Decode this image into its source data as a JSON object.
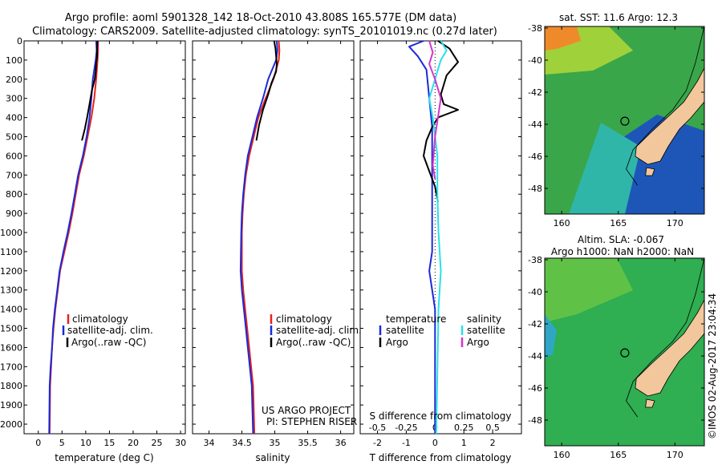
{
  "title_line1": "Argo profile: aoml 5901328_142 18-Oct-2010 43.808S 165.577E (DM data)",
  "title_line2": "Climatology: CARS2009. Satellite-adjusted climatology: synTS_20101019.nc (0.27d later)",
  "credit_line1": "US ARGO PROJECT",
  "credit_line2": "PI: STEPHEN RISER",
  "stamp": "©IMOS 02-Aug-2017 23:04:34",
  "colors": {
    "climatology": "#e8201f",
    "satellite": "#1b2ad8",
    "argo": "#000000",
    "sal_satellite": "#27e1e8",
    "sal_argo": "#d534c9"
  },
  "chart_data": [
    {
      "type": "line",
      "xlabel": "temperature (deg C)",
      "xlim": [
        -3,
        31
      ],
      "ylim": [
        2050,
        0
      ],
      "xticks": [
        "0",
        "5",
        "10",
        "15",
        "20",
        "25",
        "30"
      ],
      "yticks": [
        "0",
        "100",
        "200",
        "300",
        "400",
        "500",
        "600",
        "700",
        "800",
        "900",
        "1000",
        "1100",
        "1200",
        "1300",
        "1400",
        "1500",
        "1600",
        "1700",
        "1800",
        "1900",
        "2000"
      ],
      "legend": [
        "climatology",
        "satellite-adj. clim.",
        "Argo(..raw -QC)"
      ],
      "series": [
        {
          "name": "climatology",
          "color_key": "climatology",
          "x": [
            12.6,
            12.6,
            12.5,
            12.2,
            11.8,
            11.2,
            10.4,
            9.6,
            8.6,
            7.9,
            7.2,
            6.4,
            5.5,
            4.6,
            4.1,
            3.6,
            3.2,
            2.9,
            2.7,
            2.5,
            2.4
          ],
          "y": [
            0,
            50,
            100,
            200,
            300,
            400,
            500,
            600,
            700,
            800,
            900,
            1000,
            1100,
            1200,
            1300,
            1400,
            1500,
            1600,
            1700,
            1800,
            2050
          ]
        },
        {
          "name": "satellite-adj. clim.",
          "color_key": "satellite",
          "x": [
            12.2,
            12.3,
            12.1,
            11.5,
            11.2,
            10.8,
            10.2,
            9.4,
            8.4,
            7.7,
            7.0,
            6.2,
            5.3,
            4.5,
            4.0,
            3.5,
            3.1,
            2.9,
            2.6,
            2.4,
            2.3
          ],
          "y": [
            0,
            50,
            100,
            200,
            300,
            400,
            500,
            600,
            700,
            800,
            900,
            1000,
            1100,
            1200,
            1300,
            1400,
            1500,
            1600,
            1700,
            1800,
            2050
          ]
        },
        {
          "name": "Argo(..raw -QC)",
          "color_key": "argo",
          "x": [
            12.5,
            12.4,
            12.4,
            12.2,
            12.1,
            11.9,
            11.3,
            10.8,
            10.3,
            9.8,
            9.2
          ],
          "y": [
            0,
            40,
            80,
            120,
            160,
            200,
            260,
            330,
            400,
            460,
            520
          ]
        }
      ]
    },
    {
      "type": "line",
      "xlabel": "salinity",
      "xlim": [
        33.75,
        36.2
      ],
      "ylim": [
        2050,
        0
      ],
      "xticks": [
        "34",
        "34.5",
        "35",
        "35.5",
        "36"
      ],
      "legend": [
        "climatology",
        "satellite-adj. clim.",
        "Argo(..raw -QC)"
      ],
      "series": [
        {
          "name": "climatology",
          "color_key": "climatology",
          "x": [
            35.06,
            35.07,
            35.06,
            34.98,
            34.86,
            34.75,
            34.68,
            34.61,
            34.56,
            34.53,
            34.51,
            34.5,
            34.5,
            34.52,
            34.55,
            34.58,
            34.61,
            34.64,
            34.67,
            34.69
          ],
          "y": [
            0,
            50,
            100,
            200,
            300,
            400,
            500,
            600,
            700,
            800,
            900,
            1000,
            1200,
            1300,
            1400,
            1500,
            1600,
            1700,
            1800,
            2050
          ]
        },
        {
          "name": "satellite-adj. clim.",
          "color_key": "satellite",
          "x": [
            35.03,
            35.04,
            35.02,
            34.9,
            34.82,
            34.73,
            34.66,
            34.59,
            34.55,
            34.52,
            34.5,
            34.49,
            34.48,
            34.5,
            34.53,
            34.56,
            34.59,
            34.62,
            34.65,
            34.67
          ],
          "y": [
            0,
            50,
            100,
            200,
            300,
            400,
            500,
            600,
            700,
            800,
            900,
            1000,
            1200,
            1300,
            1400,
            1500,
            1600,
            1700,
            1800,
            2050
          ]
        },
        {
          "name": "Argo(..raw -QC)",
          "color_key": "argo",
          "x": [
            34.99,
            35.01,
            35.02,
            35.03,
            35.02,
            34.95,
            34.9,
            34.82,
            34.76,
            34.72
          ],
          "y": [
            0,
            40,
            80,
            120,
            160,
            220,
            280,
            360,
            440,
            520
          ]
        }
      ]
    },
    {
      "type": "line",
      "xlabel": "T difference from climatology",
      "xlabel2": "S difference from climatology",
      "xlim": [
        -2.6,
        3.0
      ],
      "ylim": [
        2050,
        0
      ],
      "xticks": [
        "-2",
        "-1",
        "0",
        "1",
        "2"
      ],
      "xticks_top": [
        "-0.5",
        "-0.25",
        "0",
        "0.25",
        "0.5"
      ],
      "legend_left_title": "temperature",
      "legend_right_title": "salinity",
      "legend_left": [
        "satellite",
        "Argo"
      ],
      "legend_right": [
        "satellite",
        "Argo"
      ],
      "series": [
        {
          "name": "temperature satellite",
          "color_key": "satellite",
          "x": [
            -0.4,
            -0.9,
            -0.6,
            -0.3,
            -0.2,
            -0.1,
            -0.1,
            -0.1,
            -0.1,
            -0.1,
            -0.1,
            -0.15,
            -0.2,
            -0.1,
            0,
            0,
            0
          ],
          "y": [
            0,
            30,
            80,
            150,
            300,
            450,
            600,
            750,
            900,
            1000,
            1100,
            1150,
            1200,
            1300,
            1400,
            1500,
            2050
          ]
        },
        {
          "name": "temperature Argo",
          "color_key": "argo",
          "x": [
            0.1,
            0.5,
            0.8,
            0.4,
            0.2,
            0.3,
            0.8,
            0.1,
            -0.1,
            -0.3,
            -0.4,
            -0.2,
            0,
            0.1
          ],
          "y": [
            0,
            40,
            110,
            180,
            280,
            330,
            360,
            400,
            450,
            520,
            600,
            680,
            760,
            840
          ]
        },
        {
          "name": "salinity satellite",
          "color_key": "sal_satellite",
          "x": [
            0.05,
            0.1,
            0.05,
            0,
            -0.05,
            -0.02,
            0.02,
            0.02,
            0.03,
            0.05,
            0.03,
            0.01
          ],
          "y": [
            0,
            50,
            100,
            200,
            300,
            400,
            600,
            800,
            1000,
            1200,
            1400,
            2050
          ]
        },
        {
          "name": "salinity Argo",
          "color_key": "sal_argo",
          "x": [
            -0.05,
            -0.02,
            -0.05,
            0,
            0.05,
            0,
            -0.02,
            0
          ],
          "y": [
            0,
            60,
            120,
            200,
            300,
            500,
            650,
            720
          ]
        }
      ]
    }
  ],
  "maps": [
    {
      "title": "sat. SST: 11.6 Argo: 12.3",
      "lon_ticks": [
        "160",
        "165",
        "170"
      ],
      "lat_ticks": [
        "-38",
        "-40",
        "-42",
        "-44",
        "-46",
        "-48"
      ],
      "marker_lon": 165.577,
      "marker_lat": -43.808
    },
    {
      "title_line1": "Altim. SLA: -0.067",
      "title_line2": "Argo h1000: NaN h2000: NaN",
      "lon_ticks": [
        "160",
        "165",
        "170"
      ],
      "lat_ticks": [
        "-38",
        "-40",
        "-42",
        "-44",
        "-46",
        "-48"
      ],
      "marker_lon": 165.577,
      "marker_lat": -43.808
    }
  ]
}
